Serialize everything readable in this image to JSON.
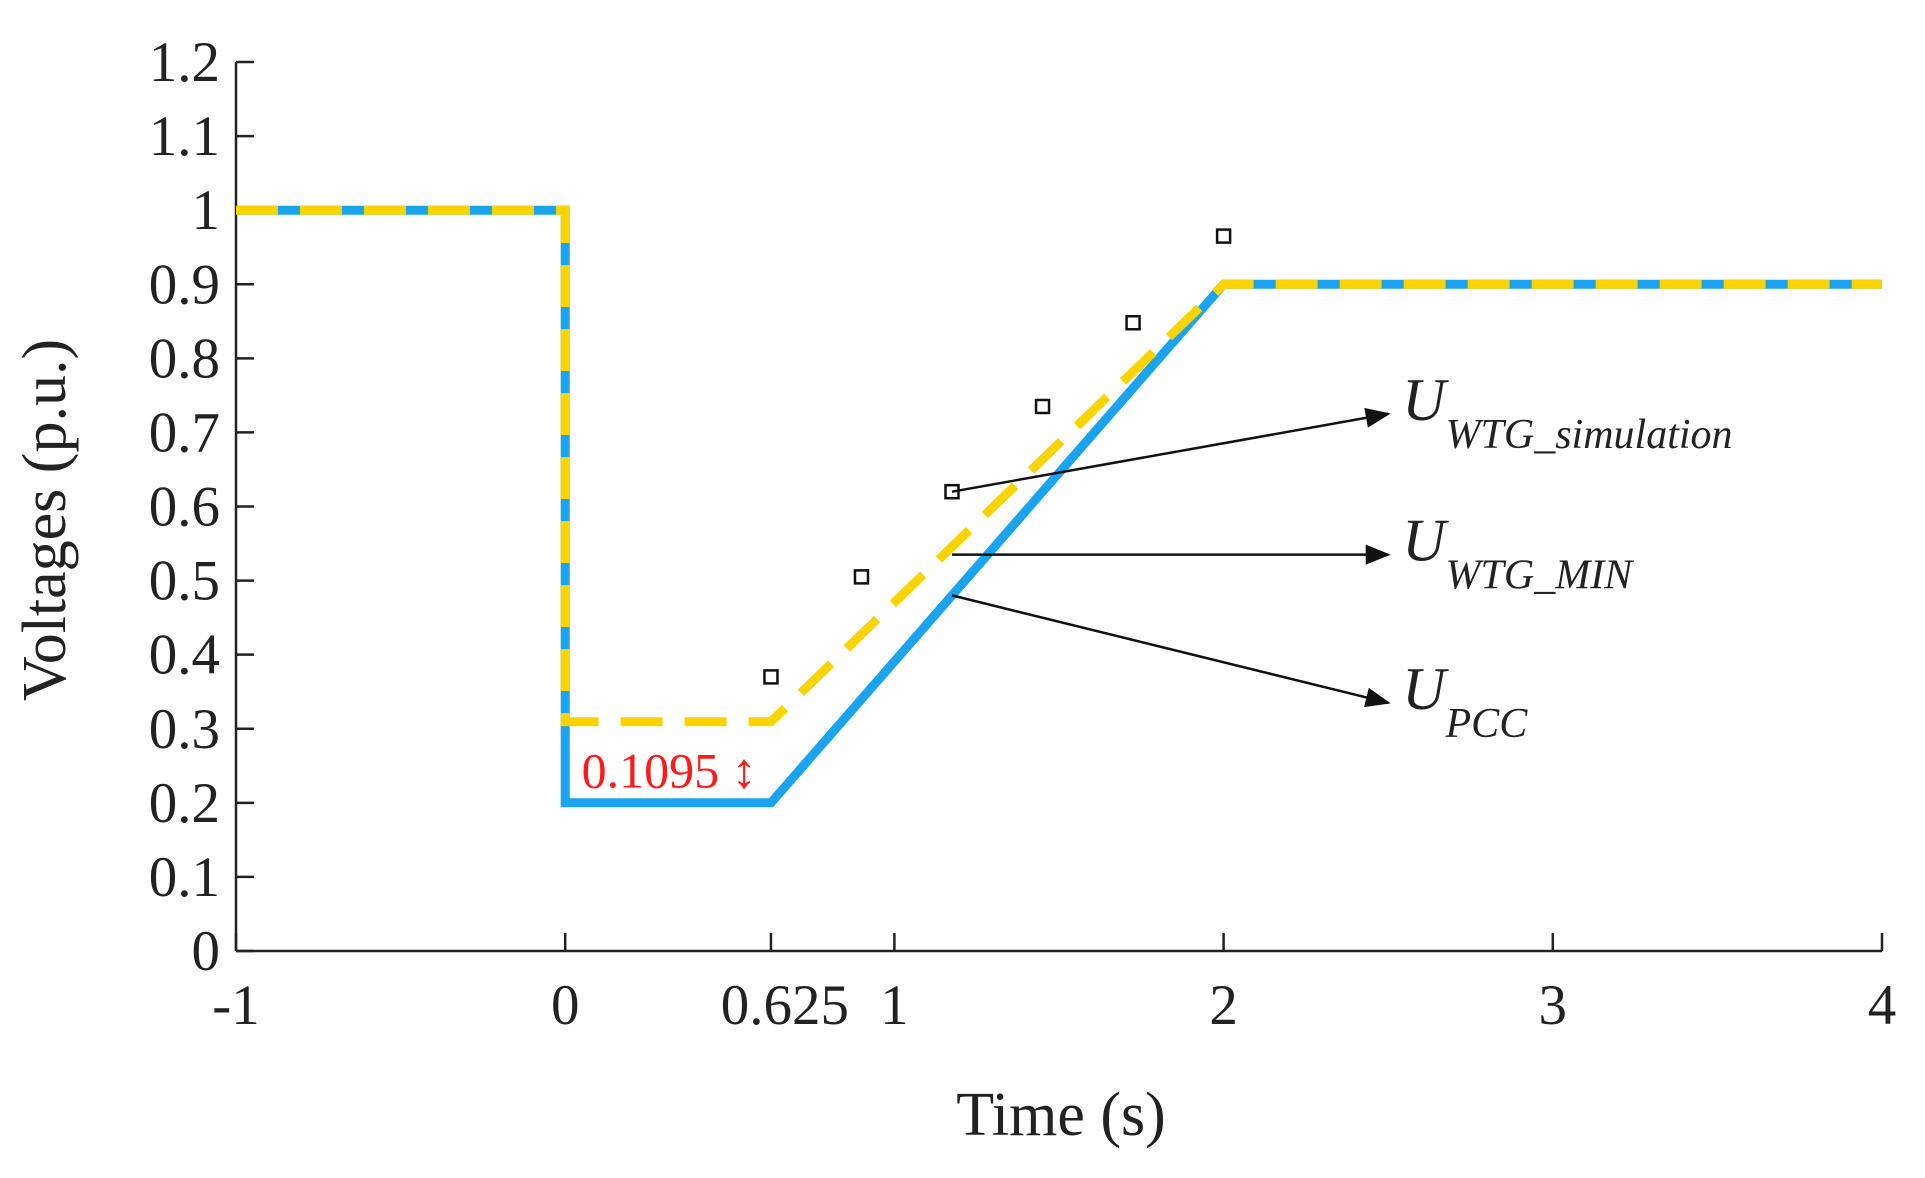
{
  "chart_data": {
    "type": "line",
    "title": "",
    "xlabel": "Time (s)",
    "ylabel": "Voltages (p.u.)",
    "xlim": [
      -1,
      4
    ],
    "ylim": [
      0,
      1.2
    ],
    "x_ticks": [
      -1,
      0,
      0.625,
      1,
      2,
      3,
      4
    ],
    "x_tick_labels": [
      "-1",
      "0",
      "0.625",
      "1",
      "2",
      "3",
      "4"
    ],
    "y_ticks": [
      0,
      0.1,
      0.2,
      0.3,
      0.4,
      0.5,
      0.6,
      0.7,
      0.8,
      0.9,
      1.0,
      1.1,
      1.2
    ],
    "y_tick_labels": [
      "0",
      "0.1",
      "0.2",
      "0.3",
      "0.4",
      "0.5",
      "0.6",
      "0.7",
      "0.8",
      "0.9",
      "1",
      "1.1",
      "1.2"
    ],
    "colors": {
      "pcc": "#1aa3ee",
      "min": "#f9d400",
      "sim_marker": "#111111",
      "gap": "#ff1a1a",
      "axis": "#222222"
    },
    "series": [
      {
        "name": "U_PCC",
        "style": "solid",
        "x": [
          -1,
          0,
          0,
          0.625,
          2,
          4
        ],
        "y": [
          1.0,
          1.0,
          0.2,
          0.2,
          0.9,
          0.9
        ]
      },
      {
        "name": "U_WTG_MIN",
        "style": "dashed",
        "x": [
          -1,
          0,
          0,
          0.625,
          2,
          4
        ],
        "y": [
          1.0,
          1.0,
          0.3095,
          0.3095,
          0.9,
          0.9
        ]
      },
      {
        "name": "U_WTG_simulation",
        "style": "markers",
        "marker": "square",
        "x": [
          0.625,
          0.9,
          1.175,
          1.45,
          1.725,
          2.0
        ],
        "y": [
          0.37,
          0.505,
          0.62,
          0.735,
          0.848,
          0.965
        ]
      }
    ],
    "annotations": [
      {
        "main": "U",
        "sub": "WTG_simulation",
        "from_x": 1.175,
        "from_y": 0.62,
        "to_x": 2.5,
        "to_y": 0.725
      },
      {
        "main": "U",
        "sub": "WTG_MIN",
        "from_x": 1.175,
        "from_y": 0.535,
        "to_x": 2.5,
        "to_y": 0.535
      },
      {
        "main": "U",
        "sub": "PCC",
        "from_x": 1.175,
        "from_y": 0.48,
        "to_x": 2.5,
        "to_y": 0.335
      }
    ],
    "gap_annotation": {
      "text": "0.1095",
      "symbol": "↕",
      "x": 0.05,
      "y": 0.245
    }
  }
}
